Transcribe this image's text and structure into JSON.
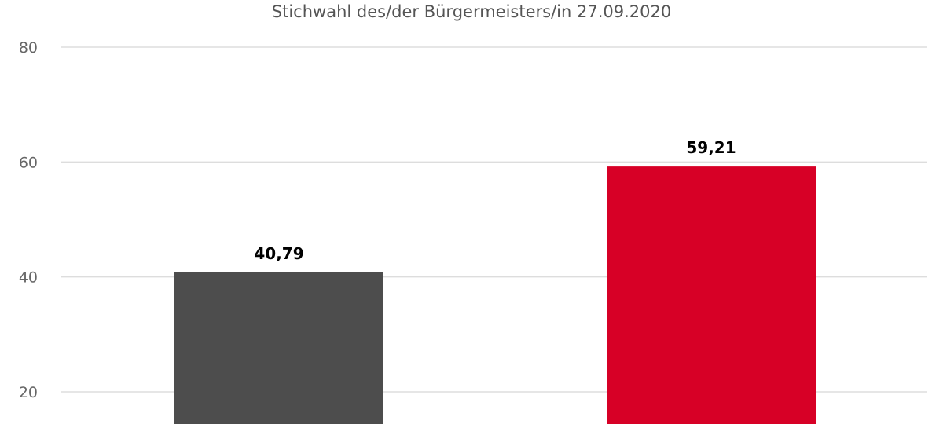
{
  "chart_data": {
    "type": "bar",
    "title": "Stichwahl des/der Bürgermeisters/in 27.09.2020",
    "xlabel": "",
    "ylabel": "",
    "ylim": [
      0,
      80
    ],
    "yticks": [
      20,
      40,
      60,
      80
    ],
    "yticks_visible_labels": [
      "20",
      "40",
      "60",
      "80"
    ],
    "grid": true,
    "legend": "none",
    "values": [
      40.79,
      59.21
    ],
    "data_labels": [
      "40,79",
      "59,21"
    ],
    "colors": [
      "#4d4d4d",
      "#d70026"
    ]
  }
}
